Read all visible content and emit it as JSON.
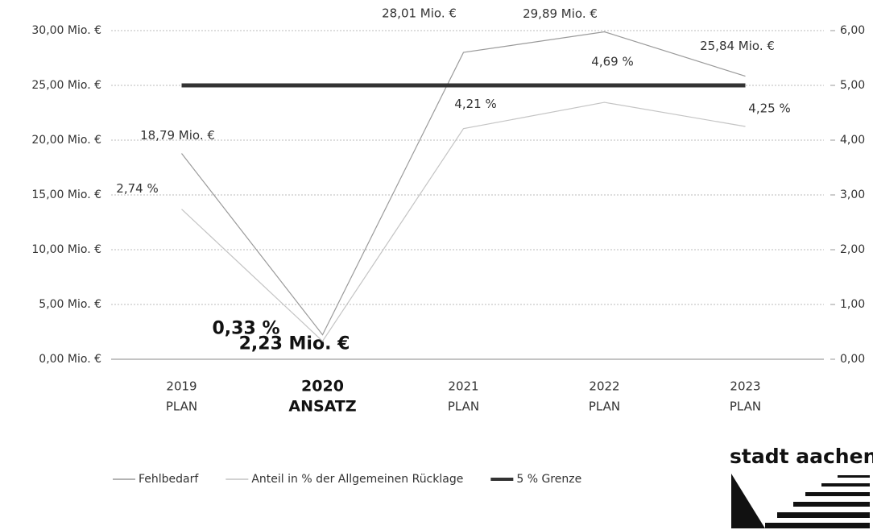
{
  "chart_data": {
    "type": "line",
    "categories": [
      [
        "2019",
        "PLAN"
      ],
      [
        "2020",
        "ANSATZ"
      ],
      [
        "2021",
        "PLAN"
      ],
      [
        "2022",
        "PLAN"
      ],
      [
        "2023",
        "PLAN"
      ]
    ],
    "series": [
      {
        "name": "Fehlbedarf",
        "color": "#9a9a9a",
        "values": [
          18.79,
          2.23,
          28.01,
          29.89,
          25.84
        ],
        "value_labels": [
          "18,79 Mio. €",
          "2,23 Mio. €",
          "28,01 Mio. €",
          "29,89 Mio. €",
          "25,84 Mio. €"
        ]
      },
      {
        "name": "Anteil in % der Allgemeinen Rücklage",
        "color": "#c4c4c4",
        "axis": "y2",
        "values": [
          2.74,
          0.33,
          4.21,
          4.69,
          4.25
        ],
        "value_labels": [
          "2,74 %",
          "0,33 %",
          "4,21 %",
          "4,69 %",
          "4,25 %"
        ]
      },
      {
        "name": "5 % Grenze",
        "color": "#333333",
        "axis": "y2",
        "values": [
          5,
          5,
          5,
          5,
          5
        ]
      }
    ],
    "ylim": [
      0,
      30
    ],
    "yticks": [
      {
        "value": 0,
        "label": "0,00 Mio. €"
      },
      {
        "value": 5,
        "label": "5,00 Mio. €"
      },
      {
        "value": 10,
        "label": "10,00 Mio. €"
      },
      {
        "value": 15,
        "label": "15,00 Mio. €"
      },
      {
        "value": 20,
        "label": "20,00 Mio. €"
      },
      {
        "value": 25,
        "label": "25,00 Mio. €"
      },
      {
        "value": 30,
        "label": "30,00 Mio. €"
      }
    ],
    "y2lim": [
      0,
      6
    ],
    "y2ticks": [
      {
        "value": 0,
        "label": "0,00"
      },
      {
        "value": 1,
        "label": "1,00"
      },
      {
        "value": 2,
        "label": "2,00"
      },
      {
        "value": 3,
        "label": "3,00"
      },
      {
        "value": 4,
        "label": "4,00"
      },
      {
        "value": 5,
        "label": "5,00"
      },
      {
        "value": 6,
        "label": "6,00"
      }
    ],
    "grid": true
  },
  "logo": "stadt aachen"
}
